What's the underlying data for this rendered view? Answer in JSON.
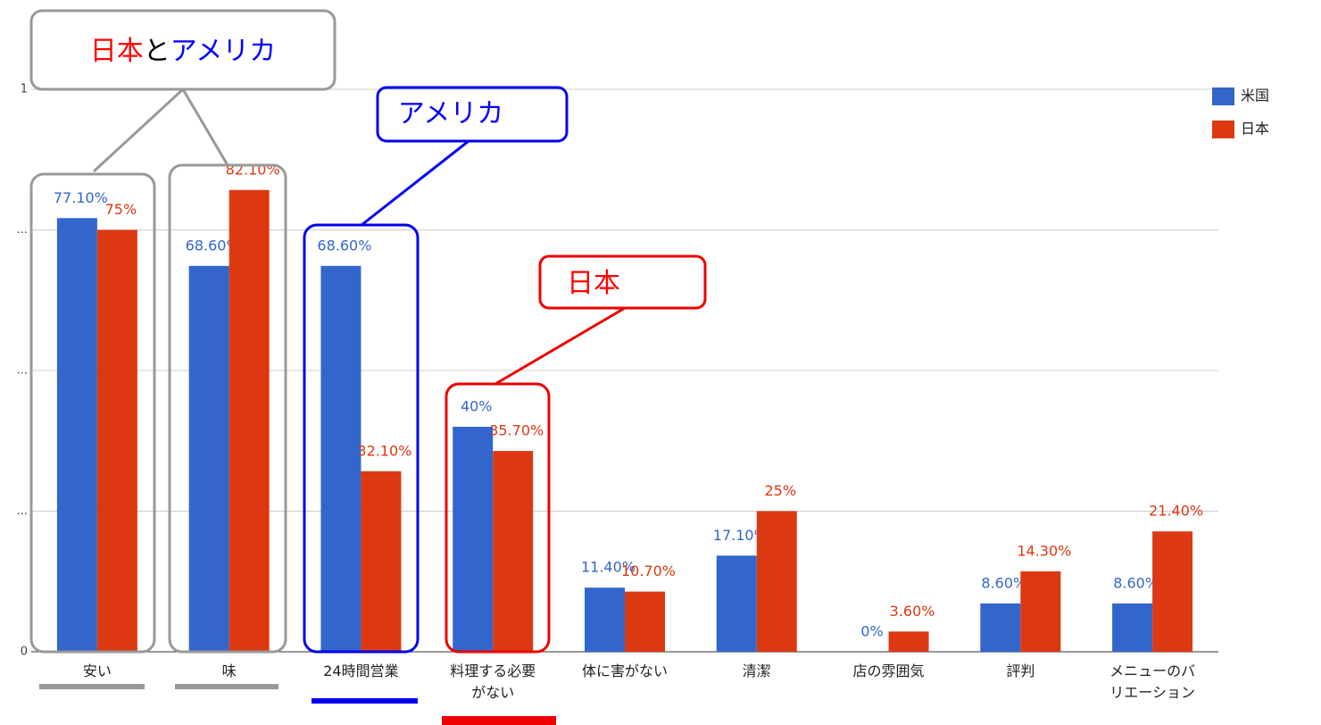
{
  "chart_data": {
    "type": "bar",
    "categories": [
      "安い",
      "味",
      "24時間営業",
      "料理する必要がない",
      "体に害がない",
      "清潔",
      "店の雰囲気",
      "評判",
      "メニューのバリエーション"
    ],
    "series": [
      {
        "name": "米国",
        "color": "#3366cc",
        "values": [
          0.771,
          0.686,
          0.686,
          0.4,
          0.114,
          0.171,
          0,
          0.086,
          0.086
        ],
        "value_labels": [
          "77.10%",
          "68.60%",
          "68.60%",
          "40%",
          "11.40%",
          "17.10%",
          "0%",
          "8.60%",
          "8.60%"
        ]
      },
      {
        "name": "日本",
        "color": "#dc3912",
        "values": [
          0.75,
          0.821,
          0.321,
          0.357,
          0.107,
          0.25,
          0.036,
          0.143,
          0.214
        ],
        "value_labels": [
          "75%",
          "82.10%",
          "32.10%",
          "35.70%",
          "10.70%",
          "25%",
          "3.60%",
          "14.30%",
          "21.40%"
        ]
      }
    ],
    "ylim": [
      0,
      1
    ],
    "yticks": [
      0,
      {
        "value": 0.25,
        "label": "..."
      },
      {
        "value": 0.5,
        "label": "..."
      },
      {
        "value": 0.75,
        "label": "..."
      },
      1
    ],
    "grid": true,
    "legend": "right",
    "annotations": [
      {
        "parts": [
          {
            "text": "日本",
            "color": "#ff0000"
          },
          {
            "text": "と",
            "color": "#000000"
          },
          {
            "text": "アメリカ",
            "color": "#0000ff"
          }
        ]
      },
      {
        "parts": [
          {
            "text": "アメリカ",
            "color": "#0000ff"
          }
        ]
      },
      {
        "parts": [
          {
            "text": "日本",
            "color": "#ff0000"
          }
        ]
      }
    ]
  }
}
